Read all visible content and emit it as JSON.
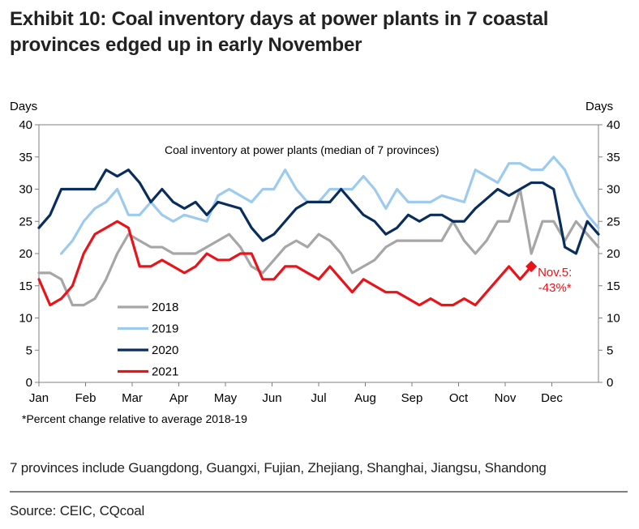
{
  "title": {
    "line1": "Exhibit 10: Coal inventory days at power plants in 7 coastal",
    "line2": "provinces edged up in early November"
  },
  "footnote_provinces": "7 provinces include Guangdong, Guangxi, Fujian, Zhejiang, Shanghai, Jiangsu, Shandong",
  "source": "Source: CEIC, CQcoal",
  "chart_data": {
    "type": "line",
    "title": "Coal inventory at power plants (median of 7 provinces)",
    "ylabel_left": "Days",
    "ylabel_right": "Days",
    "ylim": [
      0,
      40
    ],
    "yticks": [
      0,
      5,
      10,
      15,
      20,
      25,
      30,
      35,
      40
    ],
    "months": [
      "Jan",
      "Feb",
      "Mar",
      "Apr",
      "May",
      "Jun",
      "Jul",
      "Aug",
      "Sep",
      "Oct",
      "Nov",
      "Dec"
    ],
    "grid": false,
    "legend_position": "lower-left",
    "footnote": "*Percent change relative to average 2018-19",
    "annotation": {
      "label_line1": "Nov.5:",
      "label_line2": "-43%*",
      "x": 44,
      "y": 18,
      "color": "#e8141a"
    },
    "series": [
      {
        "name": "2018",
        "color": "#a6a6a6",
        "x": [
          0,
          1,
          2,
          3,
          4,
          5,
          6,
          7,
          8,
          9,
          10,
          11,
          12,
          13,
          14,
          15,
          16,
          17,
          18,
          19,
          20,
          21,
          22,
          23,
          24,
          25,
          26,
          27,
          28,
          29,
          30,
          31,
          32,
          33,
          34,
          35,
          36,
          37,
          38,
          39,
          40,
          41,
          42,
          43,
          44,
          45,
          46,
          47,
          48,
          49,
          50
        ],
        "values": [
          17,
          17,
          16,
          12,
          12,
          13,
          16,
          20,
          23,
          22,
          21,
          21,
          20,
          20,
          20,
          21,
          22,
          23,
          21,
          18,
          17,
          19,
          21,
          22,
          21,
          23,
          22,
          20,
          17,
          18,
          19,
          21,
          22,
          22,
          22,
          22,
          22,
          25,
          22,
          20,
          22,
          25,
          25,
          30,
          20,
          25,
          25,
          22,
          25,
          23,
          21
        ]
      },
      {
        "name": "2019",
        "color": "#9dcbef",
        "x": [
          2,
          3,
          4,
          5,
          6,
          7,
          8,
          9,
          10,
          11,
          12,
          13,
          14,
          15,
          16,
          17,
          18,
          19,
          20,
          21,
          22,
          23,
          24,
          25,
          26,
          27,
          28,
          29,
          30,
          31,
          32,
          33,
          34,
          35,
          36,
          37,
          38,
          39,
          40,
          41,
          42,
          43,
          44,
          45,
          46,
          47,
          48,
          49,
          50
        ],
        "values": [
          20,
          22,
          25,
          27,
          28,
          30,
          26,
          26,
          28,
          26,
          25,
          26,
          25.5,
          25,
          29,
          30,
          29,
          28,
          30,
          30,
          33,
          30,
          28,
          28,
          30,
          30,
          30,
          32,
          30,
          27,
          30,
          28,
          28,
          28,
          29,
          28.5,
          28,
          33,
          32,
          31,
          34,
          34,
          33,
          33,
          35,
          33,
          29,
          26,
          24
        ]
      },
      {
        "name": "2020",
        "color": "#0a2e5c",
        "x": [
          0,
          1,
          2,
          3,
          4,
          5,
          6,
          7,
          8,
          9,
          10,
          11,
          12,
          13,
          14,
          15,
          16,
          17,
          18,
          19,
          20,
          21,
          22,
          23,
          24,
          25,
          26,
          27,
          28,
          29,
          30,
          31,
          32,
          33,
          34,
          35,
          36,
          37,
          38,
          39,
          40,
          41,
          42,
          43,
          44,
          45,
          46,
          47,
          48,
          49,
          50
        ],
        "values": [
          24,
          26,
          30,
          30,
          30,
          30,
          33,
          32,
          33,
          31,
          28,
          30,
          28,
          27,
          28,
          26,
          28,
          27.5,
          27,
          24,
          22,
          23,
          25,
          27,
          28,
          28,
          28,
          30,
          28,
          26,
          25,
          23,
          24,
          26,
          25,
          26,
          26,
          25,
          25,
          27,
          28.5,
          30,
          29,
          30,
          31,
          31,
          30,
          21,
          20,
          25,
          23
        ]
      },
      {
        "name": "2021",
        "color": "#e8141a",
        "x": [
          0,
          1,
          2,
          3,
          4,
          5,
          6,
          7,
          8,
          9,
          10,
          11,
          12,
          13,
          14,
          15,
          16,
          17,
          18,
          19,
          20,
          21,
          22,
          23,
          24,
          25,
          26,
          27,
          28,
          29,
          30,
          31,
          32,
          33,
          34,
          35,
          36,
          37,
          38,
          39,
          40,
          41,
          42,
          43,
          44
        ],
        "values": [
          16,
          12,
          13,
          15,
          20,
          23,
          24,
          25,
          24,
          18,
          18,
          19,
          18,
          17,
          18,
          20,
          19,
          19,
          20,
          20,
          16,
          16,
          18,
          18,
          17,
          16,
          18,
          16,
          14,
          16,
          15,
          14,
          14,
          13,
          12,
          13,
          12,
          12,
          13,
          12,
          14,
          16,
          18,
          16,
          18
        ]
      }
    ]
  }
}
